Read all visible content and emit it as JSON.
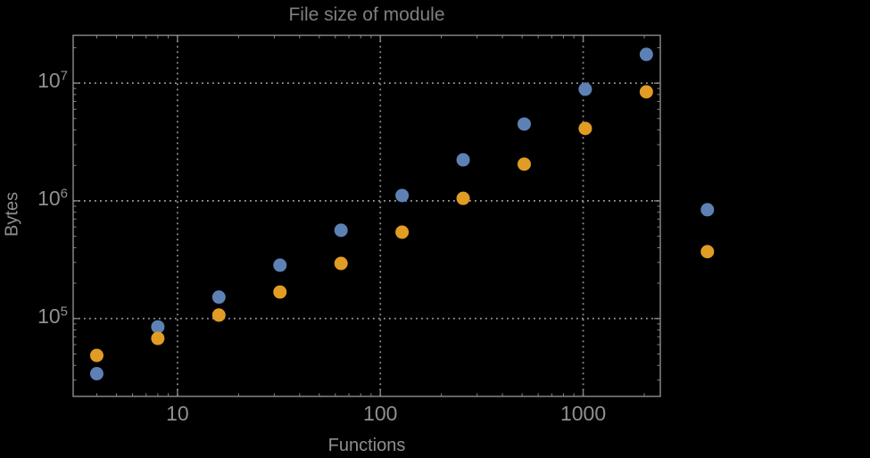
{
  "title": "File size of module",
  "axes": {
    "x_label": "Functions",
    "y_label": "Bytes",
    "x_tick_labels": [
      "10",
      "100",
      "1000"
    ],
    "y_tick_labels": [
      {
        "base": "10",
        "exp": "5"
      },
      {
        "base": "10",
        "exp": "6"
      },
      {
        "base": "10",
        "exp": "7"
      }
    ]
  },
  "colors": {
    "background": "#000000",
    "frame": "#848484",
    "gridline": "#969696",
    "tick_label": "#909090",
    "axis_label": "#8f8f8f",
    "title": "#7f7f7f",
    "series_blue": "#5e81b5",
    "series_orange": "#e19c24"
  },
  "chart_data": {
    "type": "scatter",
    "title": "File size of module",
    "xlabel": "Functions",
    "ylabel": "Bytes",
    "xscale": "log",
    "yscale": "log",
    "xlim": [
      3.06,
      2400
    ],
    "ylim": [
      21800,
      25500000
    ],
    "grid": true,
    "grid_style": "dotted",
    "x_gridlines": [
      10,
      100,
      1000
    ],
    "y_gridlines": [
      100000,
      1000000,
      10000000
    ],
    "legend_position": "none",
    "marker": "filled-circle",
    "x": [
      4,
      8,
      16,
      32,
      64,
      128,
      256,
      512,
      1024,
      2048,
      4096
    ],
    "series": [
      {
        "name": "blue",
        "color": "#5e81b5",
        "values": [
          34000,
          85000,
          152000,
          284000,
          562000,
          1110000,
          2230000,
          4490000,
          8880000,
          17550000,
          840000
        ]
      },
      {
        "name": "orange",
        "color": "#e19c24",
        "values": [
          48600,
          67800,
          107000,
          168000,
          294000,
          542000,
          1050000,
          2050000,
          4120000,
          8430000,
          370000
        ]
      }
    ]
  }
}
